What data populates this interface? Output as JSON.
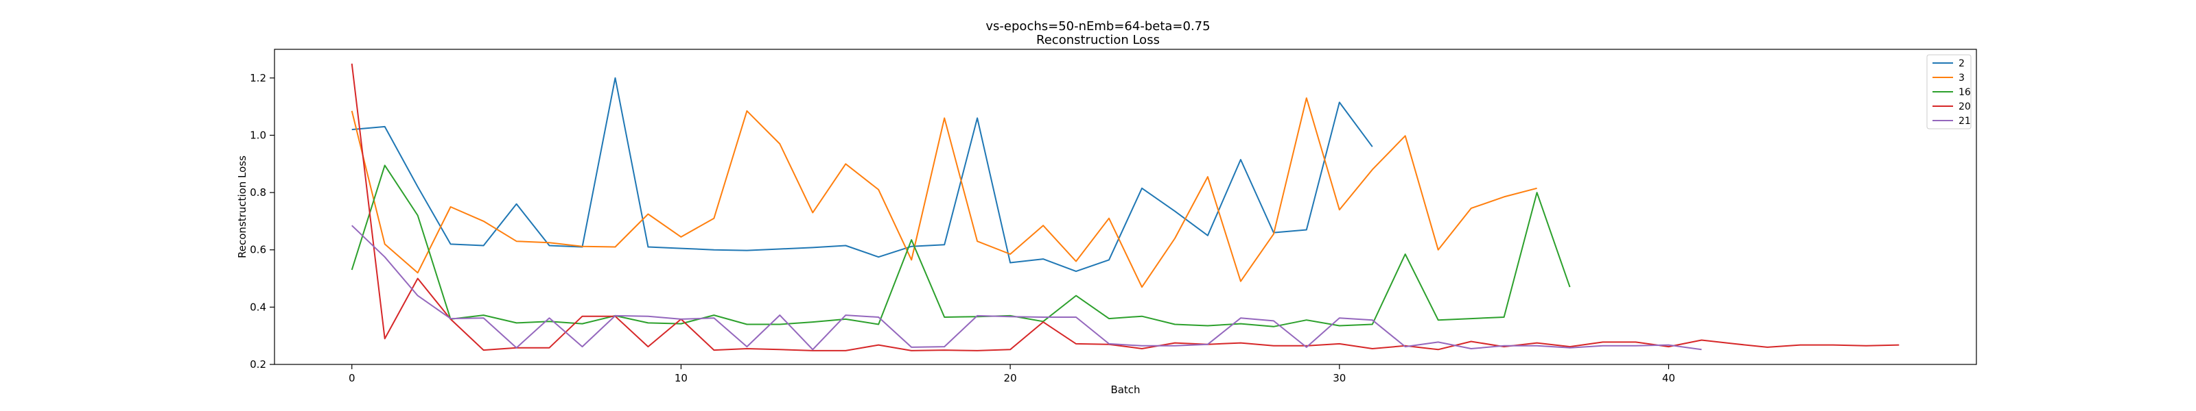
{
  "chart_data": {
    "type": "line",
    "title": "vs-epochs=50-nEmb=64-beta=0.75",
    "subtitle": "Reconstruction Loss",
    "xlabel": "Batch",
    "ylabel": "Reconstruction Loss",
    "xlim": [
      -2.35,
      49.35
    ],
    "ylim": [
      0.2,
      1.3
    ],
    "xticks": [
      0,
      10,
      20,
      30,
      40
    ],
    "yticks": [
      0.2,
      0.4,
      0.6,
      0.8,
      1.0,
      1.2
    ],
    "grid": false,
    "legend_position": "top-right",
    "series": [
      {
        "name": "2",
        "color": "#1f77b4",
        "x": [
          0,
          1,
          2,
          3,
          4,
          5,
          6,
          7,
          8,
          9,
          10,
          11,
          12,
          13,
          14,
          15,
          16,
          17,
          18,
          19,
          20,
          21,
          22,
          23,
          24,
          25,
          26,
          27,
          28,
          29,
          30,
          31
        ],
        "values": [
          1.02,
          1.03,
          0.82,
          0.62,
          0.615,
          0.76,
          0.615,
          0.61,
          1.2,
          0.61,
          0.605,
          0.6,
          0.598,
          0.603,
          0.608,
          0.615,
          0.575,
          0.612,
          0.618,
          1.06,
          0.555,
          0.568,
          0.525,
          0.565,
          0.815,
          0.735,
          0.65,
          0.915,
          0.66,
          0.67,
          1.115,
          0.96
        ]
      },
      {
        "name": "3",
        "color": "#ff7f0e",
        "x": [
          0,
          1,
          2,
          3,
          4,
          5,
          6,
          7,
          8,
          9,
          10,
          11,
          12,
          13,
          14,
          15,
          16,
          17,
          18,
          19,
          20,
          21,
          22,
          23,
          24,
          25,
          26,
          27,
          28,
          29,
          30,
          31,
          32,
          33,
          34,
          35,
          36
        ],
        "values": [
          1.085,
          0.62,
          0.52,
          0.75,
          0.7,
          0.63,
          0.625,
          0.612,
          0.61,
          0.725,
          0.645,
          0.71,
          1.085,
          0.97,
          0.73,
          0.9,
          0.81,
          0.565,
          1.06,
          0.63,
          0.585,
          0.685,
          0.56,
          0.71,
          0.47,
          0.64,
          0.855,
          0.49,
          0.655,
          1.13,
          0.74,
          0.88,
          0.998,
          0.6,
          0.745,
          0.785,
          0.815
        ]
      },
      {
        "name": "16",
        "color": "#2ca02c",
        "x": [
          0,
          1,
          2,
          3,
          4,
          5,
          6,
          7,
          8,
          9,
          10,
          11,
          12,
          13,
          14,
          15,
          16,
          17,
          18,
          19,
          20,
          21,
          22,
          23,
          24,
          25,
          26,
          27,
          28,
          29,
          30,
          31,
          32,
          33,
          34,
          35,
          36,
          37
        ],
        "values": [
          0.53,
          0.895,
          0.72,
          0.358,
          0.372,
          0.345,
          0.35,
          0.342,
          0.37,
          0.345,
          0.342,
          0.372,
          0.34,
          0.34,
          0.348,
          0.358,
          0.34,
          0.635,
          0.365,
          0.367,
          0.37,
          0.35,
          0.44,
          0.36,
          0.368,
          0.34,
          0.335,
          0.342,
          0.332,
          0.355,
          0.335,
          0.34,
          0.585,
          0.355,
          0.36,
          0.365,
          0.8,
          0.47
        ]
      },
      {
        "name": "20",
        "color": "#d62728",
        "x": [
          0,
          1,
          2,
          3,
          4,
          5,
          6,
          7,
          8,
          9,
          10,
          11,
          12,
          13,
          14,
          15,
          16,
          17,
          18,
          19,
          20,
          21,
          22,
          23,
          24,
          25,
          26,
          27,
          28,
          29,
          30,
          31,
          32,
          33,
          34,
          35,
          36,
          37,
          38,
          39,
          40,
          41,
          42,
          43,
          44,
          45,
          46,
          47
        ],
        "values": [
          1.25,
          0.29,
          0.5,
          0.358,
          0.25,
          0.258,
          0.258,
          0.368,
          0.368,
          0.262,
          0.358,
          0.25,
          0.255,
          0.252,
          0.248,
          0.248,
          0.268,
          0.248,
          0.25,
          0.248,
          0.252,
          0.348,
          0.272,
          0.27,
          0.255,
          0.275,
          0.27,
          0.275,
          0.265,
          0.265,
          0.272,
          0.255,
          0.265,
          0.252,
          0.28,
          0.262,
          0.275,
          0.262,
          0.278,
          0.278,
          0.262,
          0.285,
          0.272,
          0.26,
          0.268,
          0.268,
          0.265,
          0.268
        ]
      },
      {
        "name": "21",
        "color": "#9467bd",
        "x": [
          0,
          1,
          2,
          3,
          4,
          5,
          6,
          7,
          8,
          9,
          10,
          11,
          12,
          13,
          14,
          15,
          16,
          17,
          18,
          19,
          20,
          21,
          22,
          23,
          24,
          25,
          26,
          27,
          28,
          29,
          30,
          31,
          32,
          33,
          34,
          35,
          36,
          37,
          38,
          39,
          40,
          41
        ],
        "values": [
          0.685,
          0.575,
          0.44,
          0.36,
          0.362,
          0.258,
          0.362,
          0.262,
          0.37,
          0.368,
          0.358,
          0.362,
          0.262,
          0.372,
          0.252,
          0.372,
          0.365,
          0.26,
          0.262,
          0.37,
          0.367,
          0.365,
          0.365,
          0.272,
          0.265,
          0.265,
          0.27,
          0.362,
          0.352,
          0.26,
          0.362,
          0.355,
          0.262,
          0.278,
          0.255,
          0.265,
          0.265,
          0.258,
          0.265,
          0.265,
          0.268,
          0.252
        ]
      }
    ]
  }
}
